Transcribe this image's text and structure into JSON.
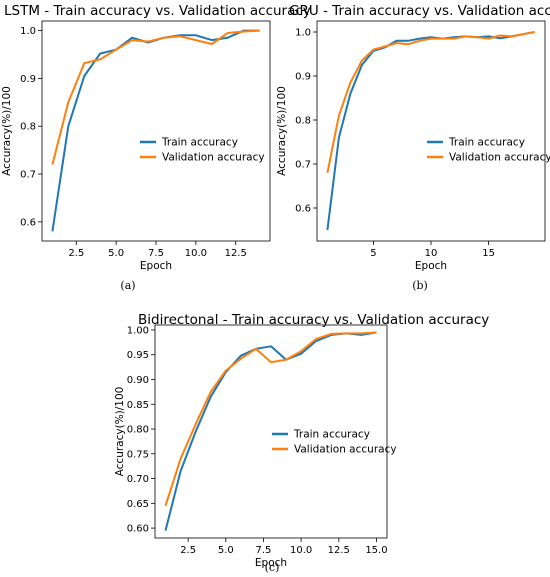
{
  "colors": {
    "train": "#1f77b4",
    "validation": "#ff7f0e"
  },
  "chart_data": [
    {
      "type": "line",
      "title": "LSTM - Train accuracy vs. Validation accuracy",
      "xlabel": "Epoch",
      "ylabel": "Accuracy(%)/100",
      "caption": "(a)",
      "xlim": [
        0.35,
        14.65
      ],
      "ylim": [
        0.56,
        1.02
      ],
      "xticks": [
        2.5,
        5.0,
        7.5,
        10.0,
        12.5
      ],
      "xtick_labels": [
        "2.5",
        "5.0",
        "7.5",
        "10.0",
        "12.5"
      ],
      "yticks": [
        0.6,
        0.7,
        0.8,
        0.9,
        1.0
      ],
      "ytick_labels": [
        "0.6",
        "0.7",
        "0.8",
        "0.9",
        "1.0"
      ],
      "legend": "center-right",
      "series": [
        {
          "name": "Train accuracy",
          "x": [
            1,
            2,
            3,
            4,
            5,
            6,
            7,
            8,
            9,
            10,
            11,
            12,
            13,
            14
          ],
          "y": [
            0.58,
            0.8,
            0.905,
            0.952,
            0.96,
            0.985,
            0.975,
            0.985,
            0.99,
            0.99,
            0.98,
            0.985,
            1.0,
            1.0
          ]
        },
        {
          "name": "Validation accuracy",
          "x": [
            1,
            2,
            3,
            4,
            5,
            6,
            7,
            8,
            9,
            10,
            11,
            12,
            13,
            14
          ],
          "y": [
            0.72,
            0.85,
            0.932,
            0.94,
            0.96,
            0.98,
            0.977,
            0.985,
            0.988,
            0.98,
            0.972,
            0.995,
            0.998,
            1.0
          ]
        }
      ]
    },
    {
      "type": "line",
      "title": "GRU - Train accuracy vs. Validation accuracy",
      "xlabel": "Epoch",
      "ylabel": "Accuracy(%)/100",
      "caption": "(b)",
      "xlim": [
        0.1,
        19.9
      ],
      "ylim": [
        0.525,
        1.025
      ],
      "xticks": [
        5,
        10,
        15
      ],
      "xtick_labels": [
        "5",
        "10",
        "15"
      ],
      "yticks": [
        0.6,
        0.7,
        0.8,
        0.9,
        1.0
      ],
      "ytick_labels": [
        "0.6",
        "0.7",
        "0.8",
        "0.9",
        "1.0"
      ],
      "legend": "center-right",
      "series": [
        {
          "name": "Train accuracy",
          "x": [
            1,
            2,
            3,
            4,
            5,
            6,
            7,
            8,
            9,
            10,
            11,
            12,
            13,
            14,
            15,
            16,
            17,
            18,
            19
          ],
          "y": [
            0.55,
            0.76,
            0.86,
            0.925,
            0.957,
            0.965,
            0.98,
            0.98,
            0.985,
            0.988,
            0.985,
            0.988,
            0.99,
            0.988,
            0.99,
            0.986,
            0.99,
            0.995,
            1.0
          ]
        },
        {
          "name": "Validation accuracy",
          "x": [
            1,
            2,
            3,
            4,
            5,
            6,
            7,
            8,
            9,
            10,
            11,
            12,
            13,
            14,
            15,
            16,
            17,
            18,
            19
          ],
          "y": [
            0.68,
            0.81,
            0.885,
            0.935,
            0.96,
            0.967,
            0.975,
            0.972,
            0.98,
            0.985,
            0.985,
            0.985,
            0.99,
            0.988,
            0.985,
            0.992,
            0.99,
            0.995,
            1.0
          ]
        }
      ]
    },
    {
      "type": "line",
      "title": "Bidirectonal - Train accuracy vs. Validation accuracy",
      "xlabel": "Epoch",
      "ylabel": "Accuracy(%)/100",
      "caption": "(c)",
      "xlim": [
        0.3,
        15.7
      ],
      "ylim": [
        0.58,
        1.01
      ],
      "xticks": [
        2.5,
        5.0,
        7.5,
        10.0,
        12.5,
        15.0
      ],
      "xtick_labels": [
        "2.5",
        "5.0",
        "7.5",
        "10.0",
        "12.5",
        "15.0"
      ],
      "yticks": [
        0.6,
        0.65,
        0.7,
        0.75,
        0.8,
        0.85,
        0.9,
        0.95,
        1.0
      ],
      "ytick_labels": [
        "0.60",
        "0.65",
        "0.70",
        "0.75",
        "0.80",
        "0.85",
        "0.90",
        "0.95",
        "1.00"
      ],
      "legend": "center-right",
      "series": [
        {
          "name": "Train accuracy",
          "x": [
            1,
            2,
            3,
            4,
            5,
            6,
            7,
            8,
            9,
            10,
            11,
            12,
            13,
            14,
            15
          ],
          "y": [
            0.595,
            0.715,
            0.795,
            0.865,
            0.915,
            0.948,
            0.962,
            0.967,
            0.94,
            0.952,
            0.978,
            0.99,
            0.993,
            0.99,
            0.995
          ]
        },
        {
          "name": "Validation accuracy",
          "x": [
            1,
            2,
            3,
            4,
            5,
            6,
            7,
            8,
            9,
            10,
            11,
            12,
            13,
            14,
            15
          ],
          "y": [
            0.645,
            0.74,
            0.81,
            0.875,
            0.918,
            0.942,
            0.962,
            0.935,
            0.94,
            0.957,
            0.982,
            0.992,
            0.993,
            0.993,
            0.995
          ]
        }
      ]
    }
  ]
}
